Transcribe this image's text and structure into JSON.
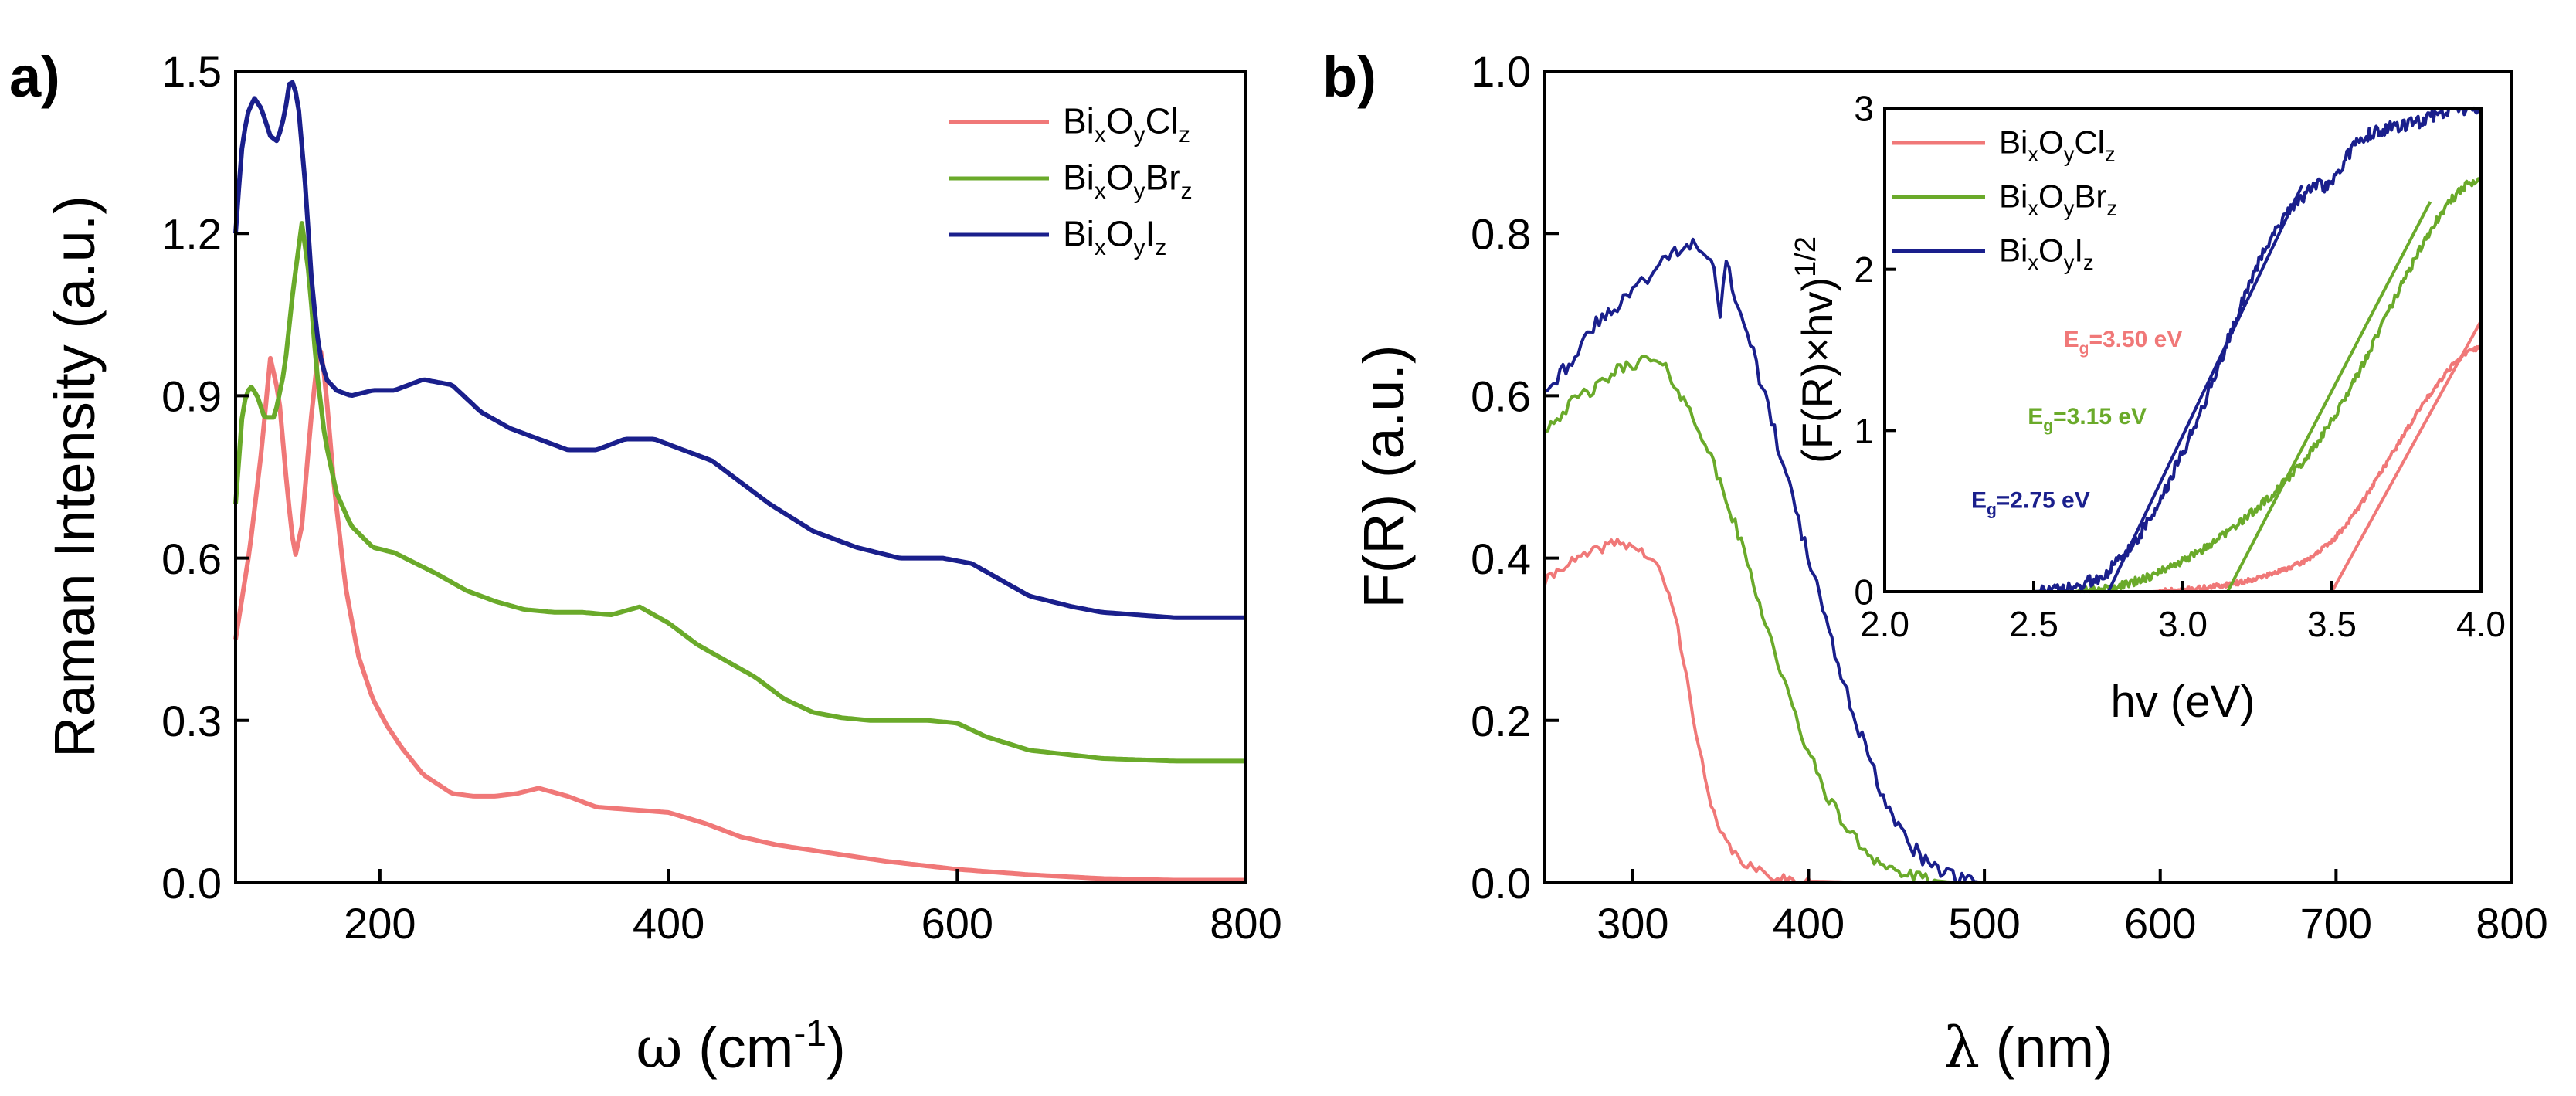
{
  "chart_data": [
    {
      "panel_label": "a)",
      "type": "line",
      "xlabel_symbol": "ω",
      "xlabel_unit_open": " (cm",
      "xlabel_unit_sup": "-1",
      "xlabel_unit_close": ")",
      "ylabel": "Raman Intensity (a.u.)",
      "xlim": [
        100,
        800
      ],
      "ylim": [
        0,
        1.5
      ],
      "xticks": [
        200,
        400,
        600,
        800
      ],
      "xtick_labels": [
        "200",
        "400",
        "600",
        "800"
      ],
      "yticks": [
        0,
        0.3,
        0.6,
        0.9,
        1.2,
        1.5
      ],
      "ytick_labels": [
        "0.0",
        "0.3",
        "0.6",
        "0.9",
        "1.2",
        "1.5"
      ],
      "grid": false,
      "legend_position": "top-right",
      "series": [
        {
          "name": "BixOyClz",
          "color": "#f07878",
          "legend": [
            [
              "Bi",
              ""
            ],
            [
              "x",
              "sub"
            ],
            [
              "O",
              ""
            ],
            [
              "y",
              "sub"
            ],
            [
              "Cl",
              ""
            ],
            [
              "z",
              "sub"
            ]
          ],
          "x": [
            100,
            110,
            118,
            124,
            130,
            136,
            141,
            146,
            152,
            158,
            162,
            168,
            176,
            185,
            195,
            205,
            215,
            230,
            250,
            265,
            280,
            295,
            310,
            330,
            350,
            375,
            400,
            425,
            450,
            475,
            500,
            550,
            600,
            650,
            700,
            750,
            800
          ],
          "y": [
            0.45,
            0.62,
            0.8,
            0.97,
            0.9,
            0.72,
            0.6,
            0.66,
            0.85,
            1.0,
            0.93,
            0.74,
            0.55,
            0.42,
            0.34,
            0.29,
            0.25,
            0.2,
            0.165,
            0.16,
            0.16,
            0.165,
            0.175,
            0.16,
            0.14,
            0.135,
            0.13,
            0.11,
            0.085,
            0.07,
            0.06,
            0.04,
            0.025,
            0.015,
            0.008,
            0.005,
            0.005
          ]
        },
        {
          "name": "BixOyBrz",
          "color": "#6aaa2a",
          "legend": [
            [
              "Bi",
              ""
            ],
            [
              "x",
              "sub"
            ],
            [
              "O",
              ""
            ],
            [
              "y",
              "sub"
            ],
            [
              "Br",
              ""
            ],
            [
              "z",
              "sub"
            ]
          ],
          "x": [
            100,
            105,
            110,
            115,
            120,
            127,
            134,
            140,
            146,
            151,
            156,
            162,
            170,
            180,
            195,
            210,
            225,
            240,
            260,
            280,
            300,
            320,
            340,
            360,
            380,
            400,
            420,
            440,
            460,
            480,
            500,
            520,
            540,
            560,
            580,
            600,
            620,
            650,
            700,
            750,
            800
          ],
          "y": [
            0.7,
            0.88,
            0.92,
            0.9,
            0.86,
            0.86,
            0.95,
            1.1,
            1.22,
            1.12,
            0.95,
            0.82,
            0.72,
            0.66,
            0.62,
            0.61,
            0.59,
            0.57,
            0.54,
            0.52,
            0.505,
            0.5,
            0.5,
            0.495,
            0.51,
            0.48,
            0.44,
            0.41,
            0.38,
            0.34,
            0.315,
            0.305,
            0.3,
            0.3,
            0.3,
            0.295,
            0.27,
            0.245,
            0.23,
            0.225,
            0.225
          ]
        },
        {
          "name": "BixOyIz",
          "color": "#1a1f8c",
          "legend": [
            [
              "Bi",
              ""
            ],
            [
              "x",
              "sub"
            ],
            [
              "O",
              ""
            ],
            [
              "y",
              "sub"
            ],
            [
              "I",
              ""
            ],
            [
              "z",
              "sub"
            ]
          ],
          "x": [
            100,
            104,
            108,
            113,
            118,
            124,
            129,
            134,
            138,
            143,
            148,
            153,
            158,
            163,
            170,
            180,
            195,
            210,
            230,
            250,
            270,
            290,
            310,
            330,
            350,
            370,
            390,
            410,
            430,
            450,
            470,
            500,
            530,
            560,
            590,
            610,
            630,
            650,
            680,
            700,
            750,
            800
          ],
          "y": [
            1.2,
            1.35,
            1.42,
            1.45,
            1.43,
            1.38,
            1.37,
            1.42,
            1.49,
            1.45,
            1.3,
            1.1,
            0.98,
            0.93,
            0.91,
            0.9,
            0.91,
            0.91,
            0.93,
            0.92,
            0.87,
            0.84,
            0.82,
            0.8,
            0.8,
            0.82,
            0.82,
            0.8,
            0.78,
            0.74,
            0.7,
            0.65,
            0.62,
            0.6,
            0.6,
            0.59,
            0.56,
            0.53,
            0.51,
            0.5,
            0.49,
            0.49
          ]
        }
      ]
    },
    {
      "panel_label": "b)",
      "type": "line",
      "xlabel_symbol": "λ",
      "xlabel_unit_open": " (nm)",
      "ylabel": "F(R) (a.u.)",
      "xlim": [
        250,
        800
      ],
      "ylim": [
        0,
        1.0
      ],
      "xticks": [
        300,
        400,
        500,
        600,
        700,
        800
      ],
      "xtick_labels": [
        "300",
        "400",
        "500",
        "600",
        "700",
        "800"
      ],
      "yticks": [
        0,
        0.2,
        0.4,
        0.6,
        0.8,
        1.0
      ],
      "ytick_labels": [
        "0.0",
        "0.2",
        "0.4",
        "0.6",
        "0.8",
        "1.0"
      ],
      "grid": false,
      "series": [
        {
          "name": "BixOyClz",
          "color": "#f07878",
          "x": [
            250,
            260,
            270,
            280,
            290,
            300,
            310,
            315,
            320,
            325,
            330,
            335,
            340,
            345,
            350,
            360,
            370,
            380,
            390,
            400,
            420,
            450,
            500,
            600,
            700,
            800
          ],
          "y": [
            0.37,
            0.39,
            0.4,
            0.41,
            0.42,
            0.415,
            0.4,
            0.385,
            0.36,
            0.32,
            0.26,
            0.2,
            0.14,
            0.09,
            0.06,
            0.03,
            0.015,
            0.008,
            0.004,
            0.002,
            0.001,
            0,
            0,
            0,
            0,
            0
          ],
          "noise": 0.006
        },
        {
          "name": "BixOyBrz",
          "color": "#6aaa2a",
          "x": [
            250,
            260,
            270,
            280,
            290,
            300,
            310,
            320,
            330,
            340,
            350,
            360,
            370,
            380,
            390,
            400,
            410,
            420,
            430,
            440,
            450,
            460,
            470,
            480,
            490,
            500,
            600,
            700,
            800
          ],
          "y": [
            0.56,
            0.58,
            0.6,
            0.61,
            0.63,
            0.64,
            0.645,
            0.63,
            0.59,
            0.55,
            0.49,
            0.43,
            0.36,
            0.29,
            0.22,
            0.16,
            0.11,
            0.072,
            0.045,
            0.026,
            0.014,
            0.007,
            0.003,
            0.001,
            0,
            0,
            0,
            0,
            0
          ],
          "noise": 0.008
        },
        {
          "name": "BixOyIz",
          "color": "#1a1f8c",
          "x": [
            250,
            260,
            270,
            280,
            290,
            300,
            310,
            320,
            330,
            340,
            345,
            348,
            350,
            352,
            355,
            360,
            370,
            380,
            390,
            400,
            410,
            420,
            430,
            440,
            450,
            460,
            470,
            480,
            490,
            500,
            600,
            700,
            800
          ],
          "y": [
            0.61,
            0.63,
            0.66,
            0.69,
            0.71,
            0.73,
            0.75,
            0.77,
            0.79,
            0.785,
            0.77,
            0.72,
            0.7,
            0.76,
            0.75,
            0.71,
            0.64,
            0.56,
            0.48,
            0.4,
            0.32,
            0.25,
            0.18,
            0.12,
            0.075,
            0.042,
            0.02,
            0.009,
            0.003,
            0,
            0,
            0,
            0
          ],
          "noise": 0.01
        }
      ],
      "inset": {
        "type": "line",
        "xlabel": "hv (eV)",
        "ylabel_main": "(F(R)×hv)",
        "ylabel_sup": "1/2",
        "xlim": [
          2.0,
          4.0
        ],
        "ylim": [
          0,
          3
        ],
        "xticks": [
          2.0,
          2.5,
          3.0,
          3.5,
          4.0
        ],
        "xtick_labels": [
          "2.0",
          "2.5",
          "3.0",
          "3.5",
          "4.0"
        ],
        "yticks": [
          0,
          1,
          2,
          3
        ],
        "ytick_labels": [
          "0",
          "1",
          "2",
          "3"
        ],
        "legend_position": "top-left",
        "series": [
          {
            "name": "BixOyClz",
            "color": "#f07878",
            "legend": [
              [
                "Bi",
                ""
              ],
              [
                "x",
                "sub"
              ],
              [
                "O",
                ""
              ],
              [
                "y",
                "sub"
              ],
              [
                "Cl",
                ""
              ],
              [
                "z",
                "sub"
              ]
            ],
            "x": [
              2.9,
              3.0,
              3.1,
              3.2,
              3.3,
              3.4,
              3.45,
              3.5,
              3.55,
              3.6,
              3.65,
              3.7,
              3.75,
              3.8,
              3.85,
              3.9,
              3.95,
              4.0
            ],
            "y": [
              0,
              0.01,
              0.03,
              0.06,
              0.11,
              0.18,
              0.24,
              0.31,
              0.42,
              0.55,
              0.7,
              0.85,
              1.0,
              1.15,
              1.28,
              1.4,
              1.48,
              1.52
            ],
            "noise": 0.015,
            "tangent": {
              "x": [
                3.5,
                4.0
              ],
              "y": [
                0,
                1.68
              ]
            },
            "eg_label": {
              "main": "E",
              "sub": "g",
              "value": "=3.50 eV",
              "x": 2.6,
              "y": 1.52
            }
          },
          {
            "name": "BixOyBrz",
            "color": "#6aaa2a",
            "legend": [
              [
                "Bi",
                ""
              ],
              [
                "x",
                "sub"
              ],
              [
                "O",
                ""
              ],
              [
                "y",
                "sub"
              ],
              [
                "Br",
                ""
              ],
              [
                "z",
                "sub"
              ]
            ],
            "x": [
              2.6,
              2.7,
              2.8,
              2.9,
              3.0,
              3.1,
              3.2,
              3.3,
              3.4,
              3.45,
              3.5,
              3.55,
              3.6,
              3.65,
              3.7,
              3.75,
              3.8,
              3.85,
              3.9,
              3.95,
              4.0
            ],
            "y": [
              0,
              0.01,
              0.04,
              0.1,
              0.19,
              0.3,
              0.44,
              0.6,
              0.8,
              0.92,
              1.06,
              1.22,
              1.4,
              1.58,
              1.78,
              1.96,
              2.14,
              2.3,
              2.43,
              2.52,
              2.56
            ],
            "noise": 0.025,
            "tangent": {
              "x": [
                3.15,
                3.83
              ],
              "y": [
                0,
                2.42
              ]
            },
            "eg_label": {
              "main": "E",
              "sub": "g",
              "value": "=3.15 eV",
              "x": 2.48,
              "y": 1.04
            }
          },
          {
            "name": "BixOyIz",
            "color": "#1a1f8c",
            "legend": [
              [
                "Bi",
                ""
              ],
              [
                "x",
                "sub"
              ],
              [
                "O",
                ""
              ],
              [
                "y",
                "sub"
              ],
              [
                "I",
                ""
              ],
              [
                "z",
                "sub"
              ]
            ],
            "x": [
              2.5,
              2.6,
              2.65,
              2.7,
              2.75,
              2.8,
              2.85,
              2.9,
              2.95,
              3.0,
              3.05,
              3.1,
              3.15,
              3.2,
              3.25,
              3.3,
              3.35,
              3.4,
              3.45,
              3.5,
              3.55,
              3.6,
              3.7,
              3.8,
              3.9,
              4.0
            ],
            "y": [
              0,
              0.01,
              0.03,
              0.07,
              0.13,
              0.22,
              0.34,
              0.48,
              0.66,
              0.86,
              1.08,
              1.3,
              1.55,
              1.8,
              2.02,
              2.22,
              2.36,
              2.45,
              2.52,
              2.52,
              2.7,
              2.82,
              2.88,
              2.92,
              3.0,
              3.0
            ],
            "noise": 0.04,
            "tangent": {
              "x": [
                2.75,
                3.4
              ],
              "y": [
                0,
                2.52
              ]
            },
            "eg_label": {
              "main": "E",
              "sub": "g",
              "value": "=2.75 eV",
              "x": 2.29,
              "y": 0.52
            }
          }
        ]
      }
    }
  ]
}
